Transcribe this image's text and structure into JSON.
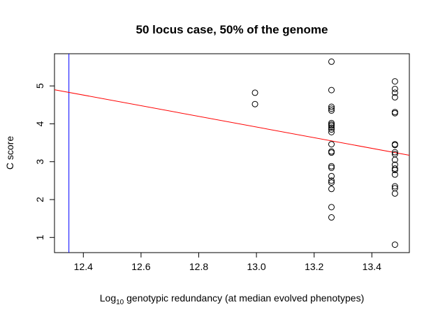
{
  "chart_data": {
    "type": "scatter",
    "title": "50 locus case, 50% of the genome",
    "xlabel": {
      "prefix": "Log",
      "subscript": "10",
      "rest": " genotypic redundancy (at median evolved phenotypes)"
    },
    "ylabel": "C score",
    "xlim": [
      12.3,
      13.53
    ],
    "ylim": [
      0.6,
      5.85
    ],
    "xticks": [
      12.4,
      12.6,
      12.8,
      13.0,
      13.2,
      13.4
    ],
    "xtick_labels": [
      "12.4",
      "12.6",
      "12.8",
      "13.0",
      "13.2",
      "13.4"
    ],
    "yticks": [
      1,
      2,
      3,
      4,
      5
    ],
    "ytick_labels": [
      "1",
      "2",
      "3",
      "4",
      "5"
    ],
    "grid": false,
    "points": [
      {
        "x": 12.995,
        "y": 4.82
      },
      {
        "x": 12.995,
        "y": 4.52
      },
      {
        "x": 13.26,
        "y": 5.64
      },
      {
        "x": 13.26,
        "y": 4.89
      },
      {
        "x": 13.26,
        "y": 4.45
      },
      {
        "x": 13.26,
        "y": 4.4
      },
      {
        "x": 13.26,
        "y": 4.35
      },
      {
        "x": 13.26,
        "y": 4.02
      },
      {
        "x": 13.26,
        "y": 3.98
      },
      {
        "x": 13.26,
        "y": 3.95
      },
      {
        "x": 13.26,
        "y": 3.9
      },
      {
        "x": 13.26,
        "y": 3.85
      },
      {
        "x": 13.26,
        "y": 3.78
      },
      {
        "x": 13.26,
        "y": 3.46
      },
      {
        "x": 13.26,
        "y": 3.27
      },
      {
        "x": 13.26,
        "y": 3.24
      },
      {
        "x": 13.26,
        "y": 2.88
      },
      {
        "x": 13.26,
        "y": 2.84
      },
      {
        "x": 13.26,
        "y": 2.62
      },
      {
        "x": 13.26,
        "y": 2.5
      },
      {
        "x": 13.26,
        "y": 2.45
      },
      {
        "x": 13.26,
        "y": 2.28
      },
      {
        "x": 13.26,
        "y": 1.8
      },
      {
        "x": 13.26,
        "y": 1.53
      },
      {
        "x": 13.48,
        "y": 5.12
      },
      {
        "x": 13.48,
        "y": 4.92
      },
      {
        "x": 13.48,
        "y": 4.82
      },
      {
        "x": 13.48,
        "y": 4.7
      },
      {
        "x": 13.48,
        "y": 4.31
      },
      {
        "x": 13.48,
        "y": 4.28
      },
      {
        "x": 13.48,
        "y": 3.46
      },
      {
        "x": 13.48,
        "y": 3.44
      },
      {
        "x": 13.48,
        "y": 3.25
      },
      {
        "x": 13.48,
        "y": 3.2
      },
      {
        "x": 13.48,
        "y": 3.05
      },
      {
        "x": 13.48,
        "y": 2.92
      },
      {
        "x": 13.48,
        "y": 2.82
      },
      {
        "x": 13.48,
        "y": 2.78
      },
      {
        "x": 13.48,
        "y": 2.66
      },
      {
        "x": 13.48,
        "y": 2.35
      },
      {
        "x": 13.48,
        "y": 2.3
      },
      {
        "x": 13.48,
        "y": 2.16
      },
      {
        "x": 13.48,
        "y": 0.81
      }
    ],
    "regression_line": {
      "color": "#ff0000",
      "points": [
        [
          12.3,
          4.9
        ],
        [
          13.53,
          3.17
        ]
      ]
    },
    "vertical_line": {
      "x": 12.35,
      "color": "#0000ff"
    }
  }
}
